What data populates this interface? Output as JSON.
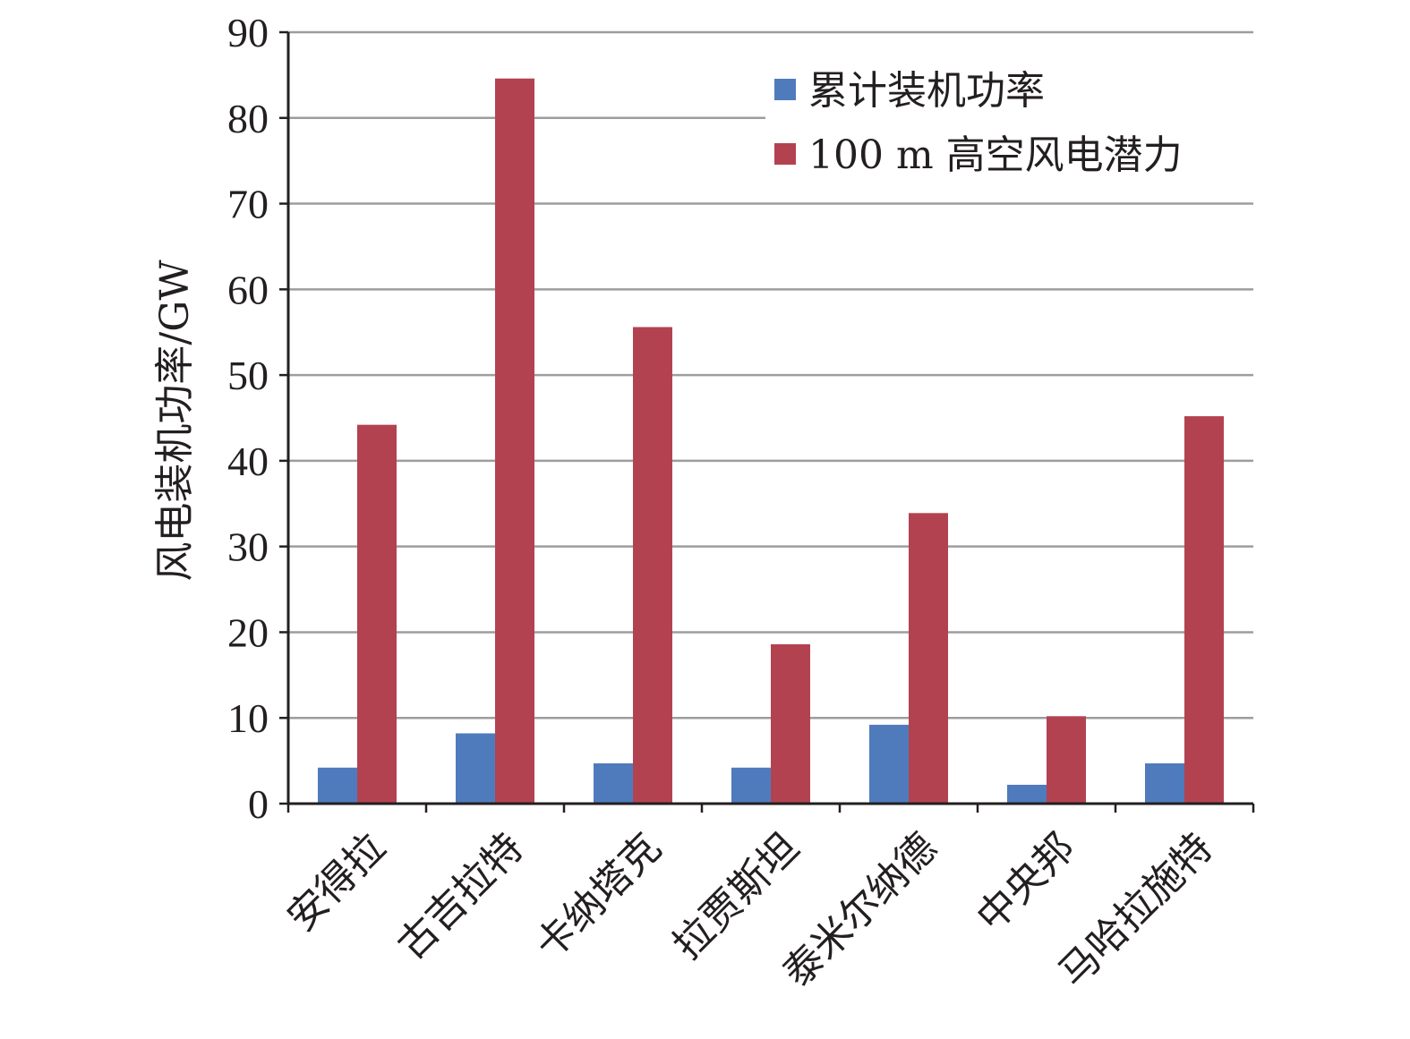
{
  "chart_data": {
    "type": "bar",
    "title": "",
    "xlabel": "",
    "ylabel": "风电装机功率/GW",
    "ylim": [
      0,
      90
    ],
    "yticks": [
      0,
      10,
      20,
      30,
      40,
      50,
      60,
      70,
      80,
      90
    ],
    "grid": true,
    "legend_position": "top-right",
    "categories": [
      "安得拉",
      "古吉拉特",
      "卡纳塔克",
      "拉贾斯坦",
      "泰米尔纳德",
      "中央邦",
      "马哈拉施特"
    ],
    "series": [
      {
        "name": "累计装机功率",
        "color": "#4f7bbd",
        "values": [
          4.2,
          8.2,
          4.7,
          4.2,
          9.2,
          2.2,
          4.7
        ]
      },
      {
        "name": "100 m 高空风电潜力",
        "color": "#b34251",
        "values": [
          44.2,
          84.6,
          55.6,
          18.6,
          33.9,
          10.2,
          45.2
        ]
      }
    ]
  }
}
